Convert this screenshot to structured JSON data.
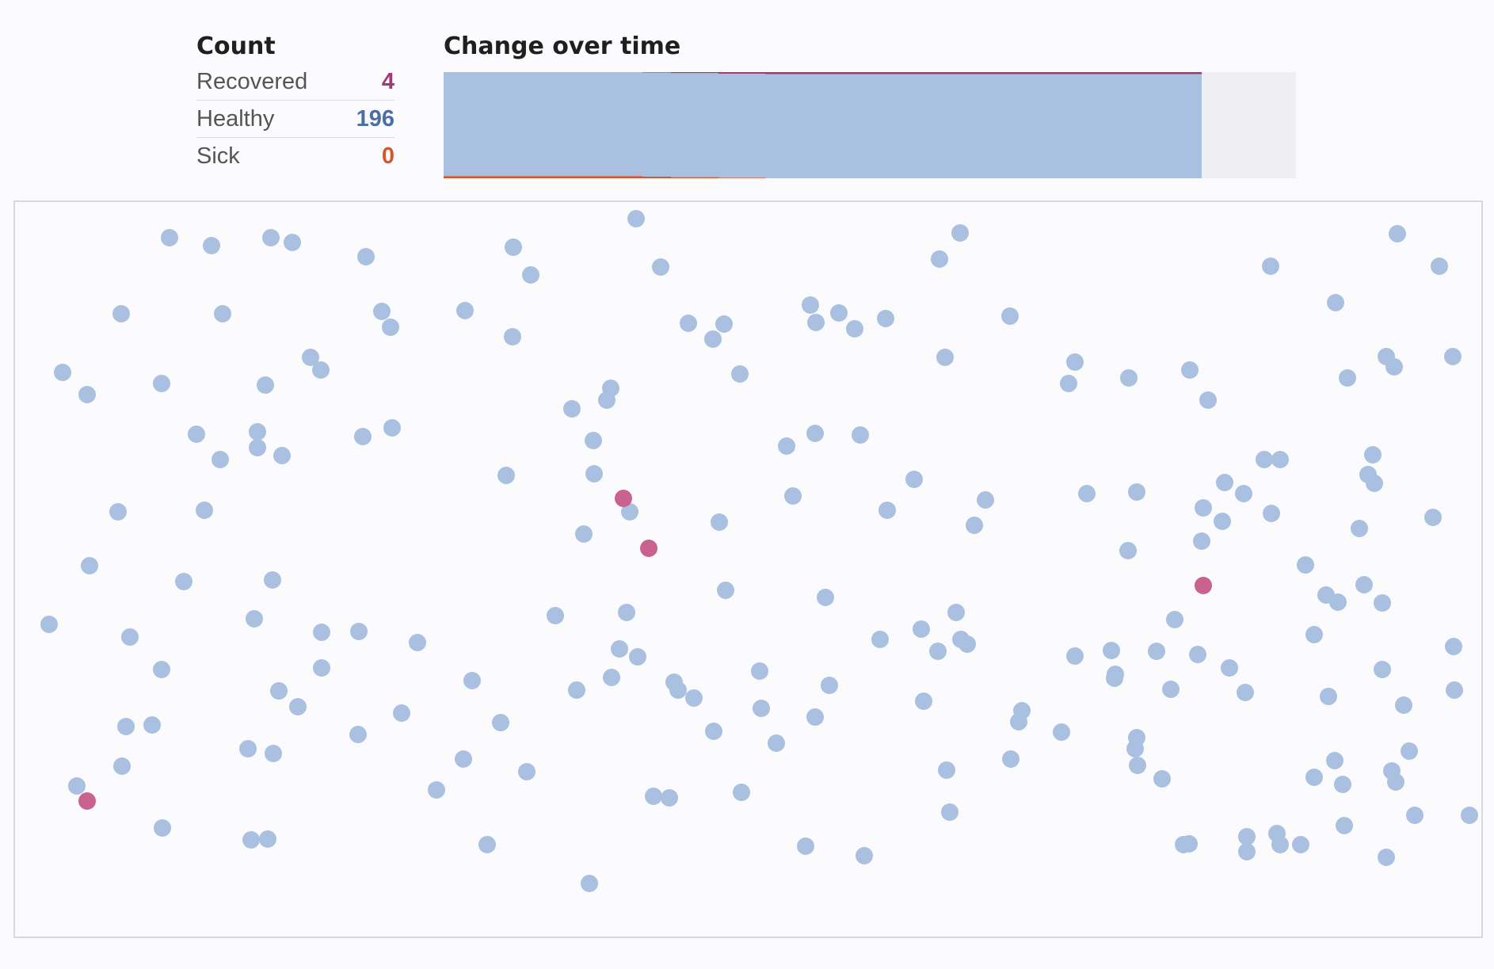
{
  "count_panel": {
    "title": "Count",
    "rows": [
      {
        "label": "Recovered",
        "value": "4",
        "color": "#a23a74"
      },
      {
        "label": "Healthy",
        "value": "196",
        "color": "#4a6fa5"
      },
      {
        "label": "Sick",
        "value": "0",
        "color": "#d2582c"
      }
    ]
  },
  "chart_panel": {
    "title": "Change over time"
  },
  "chart_data": {
    "type": "area",
    "title": "Change over time",
    "xlabel": "",
    "ylabel": "",
    "series": [
      {
        "name": "Recovered",
        "color": "#a23a74",
        "values": [
          0,
          0,
          0,
          0,
          0,
          0,
          0,
          0,
          0,
          0,
          0,
          0,
          0,
          0,
          0,
          0,
          0,
          0,
          0,
          0,
          0,
          1,
          1,
          1,
          2,
          2,
          2,
          2,
          2,
          3,
          3,
          3,
          3,
          3,
          4,
          4,
          4,
          4,
          4,
          4,
          4,
          4,
          4,
          4,
          4,
          4,
          4,
          4,
          4,
          4,
          4,
          4,
          4,
          4,
          4,
          4,
          4,
          4,
          4,
          4,
          4,
          4,
          4,
          4,
          4,
          4,
          4,
          4,
          4,
          4,
          4,
          4,
          4,
          4,
          4,
          4,
          4,
          4,
          4,
          4
        ]
      },
      {
        "name": "Healthy",
        "color": "#aac0e0",
        "values": [
          196,
          196,
          196,
          196,
          196,
          196,
          196,
          196,
          196,
          196,
          196,
          196,
          196,
          196,
          196,
          196,
          196,
          196,
          196,
          196,
          196,
          196,
          196,
          196,
          196,
          196,
          196,
          196,
          196,
          196,
          196,
          196,
          196,
          196,
          196,
          196,
          196,
          196,
          196,
          196,
          196,
          196,
          196,
          196,
          196,
          196,
          196,
          196,
          196,
          196,
          196,
          196,
          196,
          196,
          196,
          196,
          196,
          196,
          196,
          196,
          196,
          196,
          196,
          196,
          196,
          196,
          196,
          196,
          196,
          196,
          196,
          196,
          196,
          196,
          196,
          196,
          196,
          196,
          196,
          196
        ]
      },
      {
        "name": "Sick",
        "color": "#d2582c",
        "values": [
          4,
          4,
          4,
          4,
          4,
          4,
          4,
          4,
          4,
          4,
          4,
          4,
          4,
          4,
          4,
          4,
          4,
          4,
          4,
          4,
          4,
          3,
          3,
          3,
          2,
          2,
          2,
          2,
          2,
          1,
          1,
          1,
          1,
          1,
          0,
          0,
          0,
          0,
          0,
          0,
          0,
          0,
          0,
          0,
          0,
          0,
          0,
          0,
          0,
          0,
          0,
          0,
          0,
          0,
          0,
          0,
          0,
          0,
          0,
          0,
          0,
          0,
          0,
          0,
          0,
          0,
          0,
          0,
          0,
          0,
          0,
          0,
          0,
          0,
          0,
          0,
          0,
          0,
          0,
          0
        ]
      }
    ],
    "ylim": [
      0,
      200
    ],
    "total_steps": 90
  },
  "simulation": {
    "colors": {
      "healthy": "#aac0e0",
      "recovered": "#c9628f"
    },
    "people": [
      {
        "x": 195,
        "y": 45,
        "s": "healthy"
      },
      {
        "x": 248,
        "y": 55,
        "s": "healthy"
      },
      {
        "x": 323,
        "y": 45,
        "s": "healthy"
      },
      {
        "x": 350,
        "y": 51,
        "s": "healthy"
      },
      {
        "x": 443,
        "y": 69,
        "s": "healthy"
      },
      {
        "x": 629,
        "y": 57,
        "s": "healthy"
      },
      {
        "x": 651,
        "y": 92,
        "s": "healthy"
      },
      {
        "x": 784,
        "y": 21,
        "s": "healthy"
      },
      {
        "x": 815,
        "y": 82,
        "s": "healthy"
      },
      {
        "x": 1193,
        "y": 39,
        "s": "healthy"
      },
      {
        "x": 1167,
        "y": 72,
        "s": "healthy"
      },
      {
        "x": 1585,
        "y": 81,
        "s": "healthy"
      },
      {
        "x": 1745,
        "y": 40,
        "s": "healthy"
      },
      {
        "x": 1798,
        "y": 81,
        "s": "healthy"
      },
      {
        "x": 134,
        "y": 141,
        "s": "healthy"
      },
      {
        "x": 262,
        "y": 141,
        "s": "healthy"
      },
      {
        "x": 463,
        "y": 138,
        "s": "healthy"
      },
      {
        "x": 474,
        "y": 158,
        "s": "healthy"
      },
      {
        "x": 568,
        "y": 137,
        "s": "healthy"
      },
      {
        "x": 628,
        "y": 170,
        "s": "healthy"
      },
      {
        "x": 850,
        "y": 153,
        "s": "healthy"
      },
      {
        "x": 881,
        "y": 173,
        "s": "healthy"
      },
      {
        "x": 895,
        "y": 154,
        "s": "healthy"
      },
      {
        "x": 1004,
        "y": 130,
        "s": "healthy"
      },
      {
        "x": 1011,
        "y": 152,
        "s": "healthy"
      },
      {
        "x": 1040,
        "y": 140,
        "s": "healthy"
      },
      {
        "x": 1060,
        "y": 160,
        "s": "healthy"
      },
      {
        "x": 1099,
        "y": 147,
        "s": "healthy"
      },
      {
        "x": 1256,
        "y": 144,
        "s": "healthy"
      },
      {
        "x": 1667,
        "y": 127,
        "s": "healthy"
      },
      {
        "x": 60,
        "y": 215,
        "s": "healthy"
      },
      {
        "x": 91,
        "y": 243,
        "s": "healthy"
      },
      {
        "x": 185,
        "y": 229,
        "s": "healthy"
      },
      {
        "x": 316,
        "y": 231,
        "s": "healthy"
      },
      {
        "x": 373,
        "y": 196,
        "s": "healthy"
      },
      {
        "x": 386,
        "y": 212,
        "s": "healthy"
      },
      {
        "x": 915,
        "y": 217,
        "s": "healthy"
      },
      {
        "x": 1174,
        "y": 196,
        "s": "healthy"
      },
      {
        "x": 1338,
        "y": 202,
        "s": "healthy"
      },
      {
        "x": 1330,
        "y": 229,
        "s": "healthy"
      },
      {
        "x": 1406,
        "y": 222,
        "s": "healthy"
      },
      {
        "x": 1483,
        "y": 212,
        "s": "healthy"
      },
      {
        "x": 1506,
        "y": 250,
        "s": "healthy"
      },
      {
        "x": 1682,
        "y": 222,
        "s": "healthy"
      },
      {
        "x": 1731,
        "y": 195,
        "s": "healthy"
      },
      {
        "x": 1741,
        "y": 208,
        "s": "healthy"
      },
      {
        "x": 1815,
        "y": 195,
        "s": "healthy"
      },
      {
        "x": 229,
        "y": 293,
        "s": "healthy"
      },
      {
        "x": 259,
        "y": 325,
        "s": "healthy"
      },
      {
        "x": 306,
        "y": 290,
        "s": "healthy"
      },
      {
        "x": 306,
        "y": 310,
        "s": "healthy"
      },
      {
        "x": 337,
        "y": 320,
        "s": "healthy"
      },
      {
        "x": 439,
        "y": 296,
        "s": "healthy"
      },
      {
        "x": 476,
        "y": 285,
        "s": "healthy"
      },
      {
        "x": 703,
        "y": 261,
        "s": "healthy"
      },
      {
        "x": 752,
        "y": 235,
        "s": "healthy"
      },
      {
        "x": 747,
        "y": 250,
        "s": "healthy"
      },
      {
        "x": 730,
        "y": 301,
        "s": "healthy"
      },
      {
        "x": 974,
        "y": 308,
        "s": "healthy"
      },
      {
        "x": 1010,
        "y": 292,
        "s": "healthy"
      },
      {
        "x": 1067,
        "y": 294,
        "s": "healthy"
      },
      {
        "x": 1577,
        "y": 325,
        "s": "healthy"
      },
      {
        "x": 1597,
        "y": 325,
        "s": "healthy"
      },
      {
        "x": 1714,
        "y": 319,
        "s": "healthy"
      },
      {
        "x": 620,
        "y": 345,
        "s": "healthy"
      },
      {
        "x": 731,
        "y": 343,
        "s": "healthy"
      },
      {
        "x": 982,
        "y": 371,
        "s": "healthy"
      },
      {
        "x": 1135,
        "y": 350,
        "s": "healthy"
      },
      {
        "x": 1225,
        "y": 376,
        "s": "healthy"
      },
      {
        "x": 1353,
        "y": 368,
        "s": "healthy"
      },
      {
        "x": 1416,
        "y": 366,
        "s": "healthy"
      },
      {
        "x": 1527,
        "y": 354,
        "s": "healthy"
      },
      {
        "x": 1551,
        "y": 368,
        "s": "healthy"
      },
      {
        "x": 1708,
        "y": 344,
        "s": "healthy"
      },
      {
        "x": 1716,
        "y": 355,
        "s": "healthy"
      },
      {
        "x": 130,
        "y": 391,
        "s": "healthy"
      },
      {
        "x": 239,
        "y": 389,
        "s": "healthy"
      },
      {
        "x": 776,
        "y": 391,
        "s": "healthy"
      },
      {
        "x": 889,
        "y": 404,
        "s": "healthy"
      },
      {
        "x": 1101,
        "y": 389,
        "s": "healthy"
      },
      {
        "x": 1211,
        "y": 408,
        "s": "healthy"
      },
      {
        "x": 1500,
        "y": 386,
        "s": "healthy"
      },
      {
        "x": 1524,
        "y": 403,
        "s": "healthy"
      },
      {
        "x": 1586,
        "y": 393,
        "s": "healthy"
      },
      {
        "x": 1697,
        "y": 412,
        "s": "healthy"
      },
      {
        "x": 1790,
        "y": 398,
        "s": "healthy"
      },
      {
        "x": 718,
        "y": 419,
        "s": "healthy"
      },
      {
        "x": 1405,
        "y": 440,
        "s": "healthy"
      },
      {
        "x": 1498,
        "y": 428,
        "s": "healthy"
      },
      {
        "x": 94,
        "y": 459,
        "s": "healthy"
      },
      {
        "x": 213,
        "y": 479,
        "s": "healthy"
      },
      {
        "x": 325,
        "y": 477,
        "s": "healthy"
      },
      {
        "x": 897,
        "y": 490,
        "s": "healthy"
      },
      {
        "x": 1023,
        "y": 499,
        "s": "healthy"
      },
      {
        "x": 1629,
        "y": 458,
        "s": "healthy"
      },
      {
        "x": 1655,
        "y": 496,
        "s": "healthy"
      },
      {
        "x": 1703,
        "y": 483,
        "s": "healthy"
      },
      {
        "x": 1670,
        "y": 505,
        "s": "healthy"
      },
      {
        "x": 1726,
        "y": 506,
        "s": "healthy"
      },
      {
        "x": 43,
        "y": 533,
        "s": "healthy"
      },
      {
        "x": 145,
        "y": 549,
        "s": "healthy"
      },
      {
        "x": 302,
        "y": 526,
        "s": "healthy"
      },
      {
        "x": 387,
        "y": 543,
        "s": "healthy"
      },
      {
        "x": 434,
        "y": 542,
        "s": "healthy"
      },
      {
        "x": 508,
        "y": 556,
        "s": "healthy"
      },
      {
        "x": 682,
        "y": 522,
        "s": "healthy"
      },
      {
        "x": 772,
        "y": 518,
        "s": "healthy"
      },
      {
        "x": 1092,
        "y": 552,
        "s": "healthy"
      },
      {
        "x": 1144,
        "y": 539,
        "s": "healthy"
      },
      {
        "x": 1188,
        "y": 518,
        "s": "healthy"
      },
      {
        "x": 1194,
        "y": 552,
        "s": "healthy"
      },
      {
        "x": 1202,
        "y": 558,
        "s": "healthy"
      },
      {
        "x": 1464,
        "y": 527,
        "s": "healthy"
      },
      {
        "x": 1640,
        "y": 546,
        "s": "healthy"
      },
      {
        "x": 185,
        "y": 590,
        "s": "healthy"
      },
      {
        "x": 387,
        "y": 588,
        "s": "healthy"
      },
      {
        "x": 763,
        "y": 564,
        "s": "healthy"
      },
      {
        "x": 786,
        "y": 574,
        "s": "healthy"
      },
      {
        "x": 1165,
        "y": 567,
        "s": "healthy"
      },
      {
        "x": 1338,
        "y": 573,
        "s": "healthy"
      },
      {
        "x": 1384,
        "y": 566,
        "s": "healthy"
      },
      {
        "x": 1441,
        "y": 567,
        "s": "healthy"
      },
      {
        "x": 1493,
        "y": 571,
        "s": "healthy"
      },
      {
        "x": 1533,
        "y": 588,
        "s": "healthy"
      },
      {
        "x": 1726,
        "y": 590,
        "s": "healthy"
      },
      {
        "x": 1816,
        "y": 561,
        "s": "healthy"
      },
      {
        "x": 333,
        "y": 617,
        "s": "healthy"
      },
      {
        "x": 357,
        "y": 637,
        "s": "healthy"
      },
      {
        "x": 577,
        "y": 604,
        "s": "healthy"
      },
      {
        "x": 709,
        "y": 616,
        "s": "healthy"
      },
      {
        "x": 753,
        "y": 600,
        "s": "healthy"
      },
      {
        "x": 832,
        "y": 606,
        "s": "healthy"
      },
      {
        "x": 837,
        "y": 616,
        "s": "healthy"
      },
      {
        "x": 857,
        "y": 626,
        "s": "healthy"
      },
      {
        "x": 940,
        "y": 592,
        "s": "healthy"
      },
      {
        "x": 1028,
        "y": 610,
        "s": "healthy"
      },
      {
        "x": 1147,
        "y": 630,
        "s": "healthy"
      },
      {
        "x": 1389,
        "y": 596,
        "s": "healthy"
      },
      {
        "x": 1388,
        "y": 601,
        "s": "healthy"
      },
      {
        "x": 1459,
        "y": 615,
        "s": "healthy"
      },
      {
        "x": 1553,
        "y": 619,
        "s": "healthy"
      },
      {
        "x": 1658,
        "y": 624,
        "s": "healthy"
      },
      {
        "x": 1753,
        "y": 635,
        "s": "healthy"
      },
      {
        "x": 1817,
        "y": 616,
        "s": "healthy"
      },
      {
        "x": 488,
        "y": 645,
        "s": "healthy"
      },
      {
        "x": 613,
        "y": 657,
        "s": "healthy"
      },
      {
        "x": 942,
        "y": 639,
        "s": "healthy"
      },
      {
        "x": 1010,
        "y": 650,
        "s": "healthy"
      },
      {
        "x": 1271,
        "y": 642,
        "s": "healthy"
      },
      {
        "x": 1267,
        "y": 656,
        "s": "healthy"
      },
      {
        "x": 140,
        "y": 662,
        "s": "healthy"
      },
      {
        "x": 173,
        "y": 660,
        "s": "healthy"
      },
      {
        "x": 433,
        "y": 672,
        "s": "healthy"
      },
      {
        "x": 882,
        "y": 668,
        "s": "healthy"
      },
      {
        "x": 961,
        "y": 683,
        "s": "healthy"
      },
      {
        "x": 1321,
        "y": 669,
        "s": "healthy"
      },
      {
        "x": 1416,
        "y": 676,
        "s": "healthy"
      },
      {
        "x": 1414,
        "y": 690,
        "s": "healthy"
      },
      {
        "x": 294,
        "y": 690,
        "s": "healthy"
      },
      {
        "x": 326,
        "y": 696,
        "s": "healthy"
      },
      {
        "x": 566,
        "y": 703,
        "s": "healthy"
      },
      {
        "x": 1257,
        "y": 703,
        "s": "healthy"
      },
      {
        "x": 1760,
        "y": 693,
        "s": "healthy"
      },
      {
        "x": 1666,
        "y": 705,
        "s": "healthy"
      },
      {
        "x": 135,
        "y": 712,
        "s": "healthy"
      },
      {
        "x": 646,
        "y": 719,
        "s": "healthy"
      },
      {
        "x": 1176,
        "y": 717,
        "s": "healthy"
      },
      {
        "x": 1417,
        "y": 711,
        "s": "healthy"
      },
      {
        "x": 1448,
        "y": 728,
        "s": "healthy"
      },
      {
        "x": 1640,
        "y": 726,
        "s": "healthy"
      },
      {
        "x": 1676,
        "y": 735,
        "s": "healthy"
      },
      {
        "x": 1738,
        "y": 718,
        "s": "healthy"
      },
      {
        "x": 1743,
        "y": 732,
        "s": "healthy"
      },
      {
        "x": 78,
        "y": 737,
        "s": "healthy"
      },
      {
        "x": 532,
        "y": 742,
        "s": "healthy"
      },
      {
        "x": 806,
        "y": 750,
        "s": "healthy"
      },
      {
        "x": 826,
        "y": 752,
        "s": "healthy"
      },
      {
        "x": 917,
        "y": 745,
        "s": "healthy"
      },
      {
        "x": 1180,
        "y": 770,
        "s": "healthy"
      },
      {
        "x": 186,
        "y": 790,
        "s": "healthy"
      },
      {
        "x": 1678,
        "y": 787,
        "s": "healthy"
      },
      {
        "x": 1767,
        "y": 774,
        "s": "healthy"
      },
      {
        "x": 1836,
        "y": 774,
        "s": "healthy"
      },
      {
        "x": 298,
        "y": 805,
        "s": "healthy"
      },
      {
        "x": 319,
        "y": 804,
        "s": "healthy"
      },
      {
        "x": 596,
        "y": 811,
        "s": "healthy"
      },
      {
        "x": 998,
        "y": 813,
        "s": "healthy"
      },
      {
        "x": 1072,
        "y": 825,
        "s": "healthy"
      },
      {
        "x": 1475,
        "y": 811,
        "s": "healthy"
      },
      {
        "x": 1482,
        "y": 810,
        "s": "healthy"
      },
      {
        "x": 1555,
        "y": 801,
        "s": "healthy"
      },
      {
        "x": 1555,
        "y": 820,
        "s": "healthy"
      },
      {
        "x": 1593,
        "y": 797,
        "s": "healthy"
      },
      {
        "x": 1597,
        "y": 811,
        "s": "healthy"
      },
      {
        "x": 1623,
        "y": 811,
        "s": "healthy"
      },
      {
        "x": 1731,
        "y": 827,
        "s": "healthy"
      },
      {
        "x": 725,
        "y": 860,
        "s": "healthy"
      },
      {
        "x": 768,
        "y": 374,
        "s": "recovered"
      },
      {
        "x": 800,
        "y": 437,
        "s": "recovered"
      },
      {
        "x": 1500,
        "y": 484,
        "s": "recovered"
      },
      {
        "x": 91,
        "y": 756,
        "s": "recovered"
      }
    ]
  }
}
